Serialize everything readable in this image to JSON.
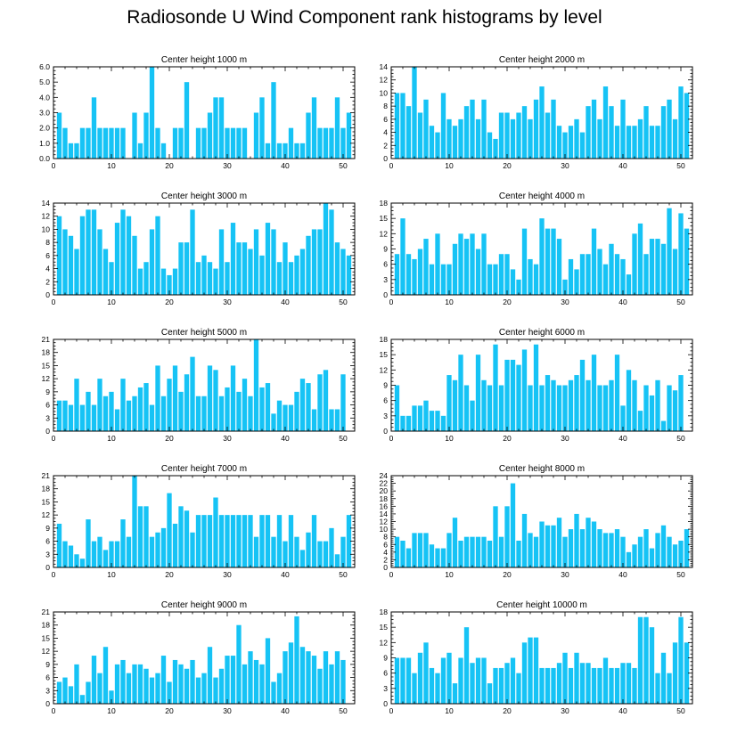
{
  "figure_title": "Radiosonde U Wind Component rank histograms by level",
  "colors": {
    "bar": "#16c3f5",
    "axis": "#000000"
  },
  "chart_data": [
    {
      "type": "bar",
      "title": "Center height 1000 m",
      "x": [
        1,
        2,
        3,
        4,
        5,
        6,
        7,
        8,
        9,
        10,
        11,
        12,
        13,
        14,
        15,
        16,
        17,
        18,
        19,
        20,
        21,
        22,
        23,
        24,
        25,
        26,
        27,
        28,
        29,
        30,
        31,
        32,
        33,
        34,
        35,
        36,
        37,
        38,
        39,
        40,
        41,
        42,
        43,
        44,
        45,
        46,
        47,
        48,
        49,
        50,
        51
      ],
      "values": [
        3,
        2,
        1,
        1,
        2,
        2,
        4,
        2,
        2,
        2,
        2,
        2,
        0,
        3,
        1,
        3,
        6,
        2,
        1,
        0,
        2,
        2,
        5,
        0,
        2,
        2,
        3,
        4,
        4,
        2,
        2,
        2,
        2,
        0,
        3,
        4,
        1,
        5,
        1,
        1,
        2,
        1,
        1,
        3,
        4,
        2,
        2,
        2,
        4,
        2,
        3
      ],
      "xlim": [
        0,
        52
      ],
      "ylim": [
        0,
        6
      ],
      "yticks": [
        "0.0",
        "1.0",
        "2.0",
        "3.0",
        "4.0",
        "5.0",
        "6.0"
      ],
      "xticks": [
        "0",
        "10",
        "20",
        "30",
        "40",
        "50"
      ]
    },
    {
      "type": "bar",
      "title": "Center height 2000 m",
      "x": [
        1,
        2,
        3,
        4,
        5,
        6,
        7,
        8,
        9,
        10,
        11,
        12,
        13,
        14,
        15,
        16,
        17,
        18,
        19,
        20,
        21,
        22,
        23,
        24,
        25,
        26,
        27,
        28,
        29,
        30,
        31,
        32,
        33,
        34,
        35,
        36,
        37,
        38,
        39,
        40,
        41,
        42,
        43,
        44,
        45,
        46,
        47,
        48,
        49,
        50,
        51
      ],
      "values": [
        10,
        10,
        8,
        14,
        7,
        9,
        5,
        4,
        10,
        6,
        5,
        6,
        8,
        9,
        6,
        9,
        4,
        3,
        7,
        7,
        6,
        7,
        8,
        6,
        9,
        11,
        7,
        9,
        5,
        4,
        5,
        6,
        4,
        8,
        9,
        6,
        11,
        8,
        5,
        9,
        5,
        5,
        6,
        8,
        5,
        5,
        8,
        9,
        6,
        11,
        10
      ],
      "xlim": [
        0,
        52
      ],
      "ylim": [
        0,
        14
      ],
      "yticks": [
        "0",
        "2",
        "4",
        "6",
        "8",
        "10",
        "12",
        "14"
      ],
      "xticks": [
        "0",
        "10",
        "20",
        "30",
        "40",
        "50"
      ]
    },
    {
      "type": "bar",
      "title": "Center height 3000 m",
      "x": [
        1,
        2,
        3,
        4,
        5,
        6,
        7,
        8,
        9,
        10,
        11,
        12,
        13,
        14,
        15,
        16,
        17,
        18,
        19,
        20,
        21,
        22,
        23,
        24,
        25,
        26,
        27,
        28,
        29,
        30,
        31,
        32,
        33,
        34,
        35,
        36,
        37,
        38,
        39,
        40,
        41,
        42,
        43,
        44,
        45,
        46,
        47,
        48,
        49,
        50,
        51
      ],
      "values": [
        12,
        10,
        9,
        7,
        12,
        13,
        13,
        10,
        7,
        5,
        11,
        13,
        12,
        9,
        4,
        5,
        10,
        12,
        4,
        3,
        4,
        8,
        8,
        13,
        5,
        6,
        5,
        4,
        10,
        5,
        11,
        8,
        8,
        7,
        10,
        6,
        11,
        10,
        5,
        8,
        5,
        6,
        7,
        9,
        10,
        10,
        14,
        13,
        8,
        7,
        6
      ],
      "xlim": [
        0,
        52
      ],
      "ylim": [
        0,
        14
      ],
      "yticks": [
        "0",
        "2",
        "4",
        "6",
        "8",
        "10",
        "12",
        "14"
      ],
      "xticks": [
        "0",
        "10",
        "20",
        "30",
        "40",
        "50"
      ]
    },
    {
      "type": "bar",
      "title": "Center height 4000 m",
      "x": [
        1,
        2,
        3,
        4,
        5,
        6,
        7,
        8,
        9,
        10,
        11,
        12,
        13,
        14,
        15,
        16,
        17,
        18,
        19,
        20,
        21,
        22,
        23,
        24,
        25,
        26,
        27,
        28,
        29,
        30,
        31,
        32,
        33,
        34,
        35,
        36,
        37,
        38,
        39,
        40,
        41,
        42,
        43,
        44,
        45,
        46,
        47,
        48,
        49,
        50,
        51
      ],
      "values": [
        8,
        15,
        8,
        7,
        9,
        11,
        6,
        12,
        6,
        6,
        10,
        12,
        11,
        12,
        9,
        12,
        6,
        6,
        8,
        8,
        5,
        3,
        13,
        7,
        6,
        15,
        13,
        13,
        11,
        3,
        7,
        5,
        8,
        8,
        13,
        9,
        6,
        10,
        8,
        7,
        4,
        12,
        14,
        8,
        11,
        11,
        10,
        17,
        9,
        16,
        13
      ],
      "xlim": [
        0,
        52
      ],
      "ylim": [
        0,
        18
      ],
      "yticks": [
        "0",
        "3",
        "6",
        "9",
        "12",
        "15",
        "18"
      ],
      "xticks": [
        "0",
        "10",
        "20",
        "30",
        "40",
        "50"
      ]
    },
    {
      "type": "bar",
      "title": "Center height 5000 m",
      "x": [
        1,
        2,
        3,
        4,
        5,
        6,
        7,
        8,
        9,
        10,
        11,
        12,
        13,
        14,
        15,
        16,
        17,
        18,
        19,
        20,
        21,
        22,
        23,
        24,
        25,
        26,
        27,
        28,
        29,
        30,
        31,
        32,
        33,
        34,
        35,
        36,
        37,
        38,
        39,
        40,
        41,
        42,
        43,
        44,
        45,
        46,
        47,
        48,
        49,
        50,
        51
      ],
      "values": [
        7,
        7,
        6,
        12,
        6,
        9,
        6,
        12,
        8,
        9,
        5,
        12,
        7,
        8,
        10,
        11,
        6,
        15,
        8,
        12,
        15,
        9,
        13,
        17,
        8,
        8,
        15,
        14,
        8,
        10,
        15,
        9,
        12,
        8,
        21,
        10,
        11,
        4,
        7,
        6,
        6,
        9,
        12,
        11,
        5,
        13,
        14,
        5,
        5,
        13,
        0
      ],
      "xlim": [
        0,
        52
      ],
      "ylim": [
        0,
        21
      ],
      "yticks": [
        "0",
        "3",
        "6",
        "9",
        "12",
        "15",
        "18",
        "21"
      ],
      "xticks": [
        "0",
        "10",
        "20",
        "30",
        "40",
        "50"
      ]
    },
    {
      "type": "bar",
      "title": "Center height 6000 m",
      "x": [
        1,
        2,
        3,
        4,
        5,
        6,
        7,
        8,
        9,
        10,
        11,
        12,
        13,
        14,
        15,
        16,
        17,
        18,
        19,
        20,
        21,
        22,
        23,
        24,
        25,
        26,
        27,
        28,
        29,
        30,
        31,
        32,
        33,
        34,
        35,
        36,
        37,
        38,
        39,
        40,
        41,
        42,
        43,
        44,
        45,
        46,
        47,
        48,
        49,
        50,
        51
      ],
      "values": [
        9,
        3,
        3,
        5,
        5,
        6,
        4,
        4,
        3,
        11,
        10,
        15,
        9,
        6,
        15,
        10,
        9,
        17,
        9,
        14,
        14,
        13,
        16,
        9,
        17,
        9,
        11,
        10,
        9,
        9,
        10,
        11,
        14,
        10,
        15,
        9,
        9,
        10,
        15,
        5,
        12,
        10,
        4,
        9,
        7,
        10,
        2,
        9,
        8,
        11,
        0
      ],
      "xlim": [
        0,
        52
      ],
      "ylim": [
        0,
        18
      ],
      "yticks": [
        "0",
        "3",
        "6",
        "9",
        "12",
        "15",
        "18"
      ],
      "xticks": [
        "0",
        "10",
        "20",
        "30",
        "40",
        "50"
      ]
    },
    {
      "type": "bar",
      "title": "Center height 7000 m",
      "x": [
        1,
        2,
        3,
        4,
        5,
        6,
        7,
        8,
        9,
        10,
        11,
        12,
        13,
        14,
        15,
        16,
        17,
        18,
        19,
        20,
        21,
        22,
        23,
        24,
        25,
        26,
        27,
        28,
        29,
        30,
        31,
        32,
        33,
        34,
        35,
        36,
        37,
        38,
        39,
        40,
        41,
        42,
        43,
        44,
        45,
        46,
        47,
        48,
        49,
        50,
        51
      ],
      "values": [
        10,
        6,
        5,
        3,
        2,
        11,
        6,
        7,
        4,
        6,
        6,
        11,
        7,
        21,
        14,
        14,
        7,
        8,
        9,
        17,
        10,
        14,
        13,
        8,
        12,
        12,
        12,
        16,
        12,
        12,
        12,
        12,
        12,
        12,
        7,
        12,
        12,
        7,
        12,
        6,
        12,
        7,
        4,
        8,
        12,
        6,
        6,
        9,
        3,
        7,
        12
      ],
      "xlim": [
        0,
        52
      ],
      "ylim": [
        0,
        21
      ],
      "yticks": [
        "0",
        "3",
        "6",
        "9",
        "12",
        "15",
        "18",
        "21"
      ],
      "xticks": [
        "0",
        "10",
        "20",
        "30",
        "40",
        "50"
      ]
    },
    {
      "type": "bar",
      "title": "Center height 8000 m",
      "x": [
        1,
        2,
        3,
        4,
        5,
        6,
        7,
        8,
        9,
        10,
        11,
        12,
        13,
        14,
        15,
        16,
        17,
        18,
        19,
        20,
        21,
        22,
        23,
        24,
        25,
        26,
        27,
        28,
        29,
        30,
        31,
        32,
        33,
        34,
        35,
        36,
        37,
        38,
        39,
        40,
        41,
        42,
        43,
        44,
        45,
        46,
        47,
        48,
        49,
        50,
        51
      ],
      "values": [
        8,
        7,
        5,
        9,
        9,
        9,
        6,
        5,
        5,
        9,
        13,
        7,
        8,
        8,
        8,
        8,
        7,
        16,
        8,
        16,
        22,
        7,
        14,
        9,
        8,
        12,
        11,
        11,
        13,
        8,
        10,
        14,
        10,
        13,
        12,
        10,
        9,
        9,
        10,
        8,
        4,
        6,
        8,
        10,
        5,
        9,
        11,
        8,
        6,
        7,
        10
      ],
      "xlim": [
        0,
        52
      ],
      "ylim": [
        0,
        24
      ],
      "yticks": [
        "0",
        "2",
        "4",
        "6",
        "8",
        "10",
        "12",
        "14",
        "16",
        "18",
        "20",
        "22",
        "24"
      ],
      "xticks": [
        "0",
        "10",
        "20",
        "30",
        "40",
        "50"
      ]
    },
    {
      "type": "bar",
      "title": "Center height 9000 m",
      "x": [
        1,
        2,
        3,
        4,
        5,
        6,
        7,
        8,
        9,
        10,
        11,
        12,
        13,
        14,
        15,
        16,
        17,
        18,
        19,
        20,
        21,
        22,
        23,
        24,
        25,
        26,
        27,
        28,
        29,
        30,
        31,
        32,
        33,
        34,
        35,
        36,
        37,
        38,
        39,
        40,
        41,
        42,
        43,
        44,
        45,
        46,
        47,
        48,
        49,
        50,
        51
      ],
      "values": [
        5,
        6,
        4,
        9,
        2,
        5,
        11,
        7,
        13,
        3,
        9,
        10,
        7,
        9,
        9,
        8,
        6,
        7,
        11,
        5,
        10,
        9,
        8,
        10,
        6,
        7,
        13,
        6,
        8,
        11,
        11,
        18,
        9,
        12,
        10,
        9,
        15,
        5,
        7,
        12,
        14,
        20,
        13,
        12,
        11,
        8,
        12,
        9,
        12,
        10,
        0
      ],
      "xlim": [
        0,
        52
      ],
      "ylim": [
        0,
        21
      ],
      "yticks": [
        "0",
        "3",
        "6",
        "9",
        "12",
        "15",
        "18",
        "21"
      ],
      "xticks": [
        "0",
        "10",
        "20",
        "30",
        "40",
        "50"
      ]
    },
    {
      "type": "bar",
      "title": "Center height 10000 m",
      "x": [
        1,
        2,
        3,
        4,
        5,
        6,
        7,
        8,
        9,
        10,
        11,
        12,
        13,
        14,
        15,
        16,
        17,
        18,
        19,
        20,
        21,
        22,
        23,
        24,
        25,
        26,
        27,
        28,
        29,
        30,
        31,
        32,
        33,
        34,
        35,
        36,
        37,
        38,
        39,
        40,
        41,
        42,
        43,
        44,
        45,
        46,
        47,
        48,
        49,
        50,
        51
      ],
      "values": [
        9,
        9,
        9,
        6,
        10,
        12,
        7,
        6,
        9,
        10,
        4,
        9,
        15,
        8,
        9,
        9,
        4,
        7,
        7,
        8,
        9,
        6,
        12,
        13,
        13,
        7,
        7,
        7,
        8,
        10,
        7,
        10,
        8,
        8,
        7,
        7,
        9,
        7,
        7,
        8,
        8,
        7,
        17,
        17,
        15,
        6,
        10,
        6,
        12,
        17,
        12
      ],
      "xlim": [
        0,
        52
      ],
      "ylim": [
        0,
        18
      ],
      "yticks": [
        "0",
        "3",
        "6",
        "9",
        "12",
        "15",
        "18"
      ],
      "xticks": [
        "0",
        "10",
        "20",
        "30",
        "40",
        "50"
      ]
    }
  ]
}
